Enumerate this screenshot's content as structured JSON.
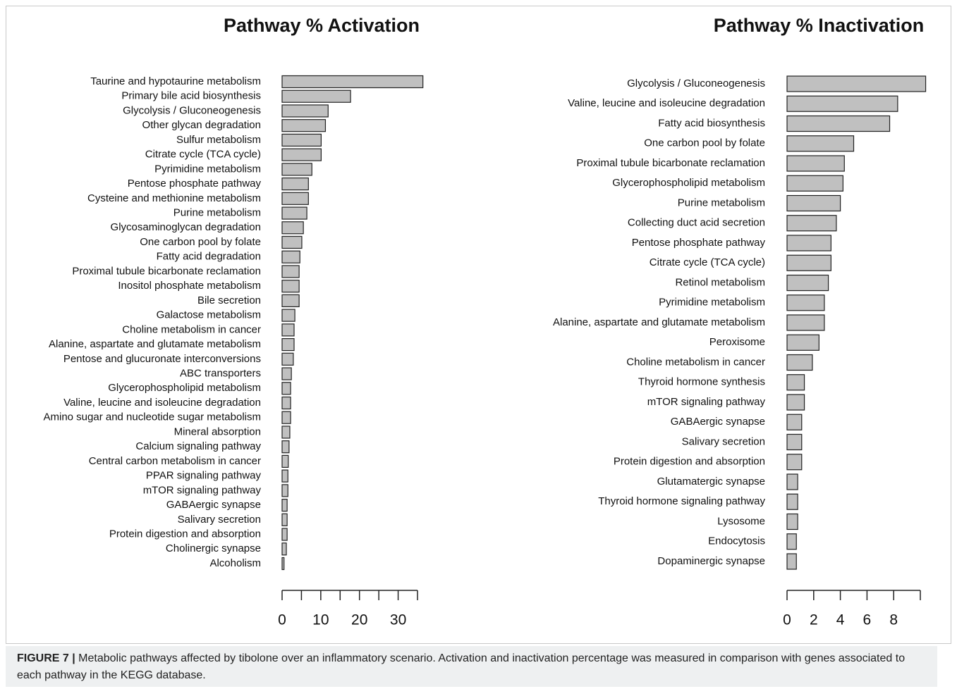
{
  "chart_data": [
    {
      "type": "barh",
      "title": "Pathway % Activation",
      "categories": [
        "Taurine and hypotaurine metabolism",
        "Primary bile acid biosynthesis",
        "Glycolysis / Gluconeogenesis",
        "Other glycan degradation",
        "Sulfur metabolism",
        "Citrate cycle (TCA cycle)",
        "Pyrimidine metabolism",
        "Pentose phosphate pathway",
        "Cysteine and methionine metabolism",
        "Purine metabolism",
        "Glycosaminoglycan degradation",
        "One carbon pool by folate",
        "Fatty acid degradation",
        "Proximal tubule bicarbonate reclamation",
        "Inositol phosphate metabolism",
        "Bile secretion",
        "Galactose metabolism",
        "Choline metabolism in cancer",
        "Alanine, aspartate and glutamate metabolism",
        "Pentose and glucuronate interconversions",
        "ABC transporters",
        "Glycerophospholipid metabolism",
        "Valine, leucine and isoleucine degradation",
        "Amino sugar and nucleotide sugar metabolism",
        "Mineral absorption",
        "Calcium signaling pathway",
        "Central carbon metabolism in cancer",
        "PPAR signaling pathway",
        "mTOR signaling pathway",
        "GABAergic synapse",
        "Salivary secretion",
        "Protein digestion and absorption",
        "Cholinergic synapse",
        "Alcoholism"
      ],
      "values": [
        36.4,
        17.7,
        11.9,
        11.2,
        10.1,
        10.1,
        7.7,
        6.8,
        6.8,
        6.4,
        5.5,
        5.1,
        4.6,
        4.4,
        4.4,
        4.4,
        3.3,
        3.1,
        3.1,
        2.9,
        2.4,
        2.2,
        2.2,
        2.2,
        2.0,
        1.8,
        1.6,
        1.5,
        1.5,
        1.3,
        1.3,
        1.3,
        1.1,
        0.5
      ],
      "color": "#c0c0c0",
      "xlim": [
        0,
        35
      ],
      "xticks": [
        0,
        10,
        20,
        30
      ],
      "xminorticks": [
        5,
        15,
        25,
        35
      ]
    },
    {
      "type": "barh",
      "title": "Pathway % Inactivation",
      "categories": [
        "Glycolysis / Gluconeogenesis",
        "Valine, leucine and isoleucine degradation",
        "Fatty acid biosynthesis",
        "One carbon pool by folate",
        "Proximal tubule bicarbonate reclamation",
        "Glycerophospholipid metabolism",
        "Purine metabolism",
        "Collecting duct acid secretion",
        "Pentose phosphate pathway",
        "Citrate cycle (TCA cycle)",
        "Retinol metabolism",
        "Pyrimidine metabolism",
        "Alanine, aspartate and glutamate metabolism",
        "Peroxisome",
        "Choline metabolism in cancer",
        "Thyroid hormone synthesis",
        "mTOR signaling pathway",
        "GABAergic synapse",
        "Salivary secretion",
        "Protein digestion and absorption",
        "Glutamatergic synapse",
        "Thyroid hormone signaling pathway",
        "Lysosome",
        "Endocytosis",
        "Dopaminergic synapse"
      ],
      "values": [
        10.4,
        8.3,
        7.7,
        5.0,
        4.3,
        4.2,
        4.0,
        3.7,
        3.3,
        3.3,
        3.1,
        2.8,
        2.8,
        2.4,
        1.9,
        1.3,
        1.3,
        1.1,
        1.1,
        1.1,
        0.8,
        0.8,
        0.8,
        0.7,
        0.7
      ],
      "color": "#c0c0c0",
      "xlim": [
        0,
        10
      ],
      "xticks": [
        0,
        2,
        4,
        6,
        8
      ],
      "xminorticks": [
        10
      ]
    }
  ],
  "caption": {
    "label": "FIGURE 7 |",
    "text": "Metabolic pathways affected by tibolone over an inflammatory scenario. Activation and inactivation percentage was measured in comparison with genes associated to each pathway in the KEGG database."
  }
}
